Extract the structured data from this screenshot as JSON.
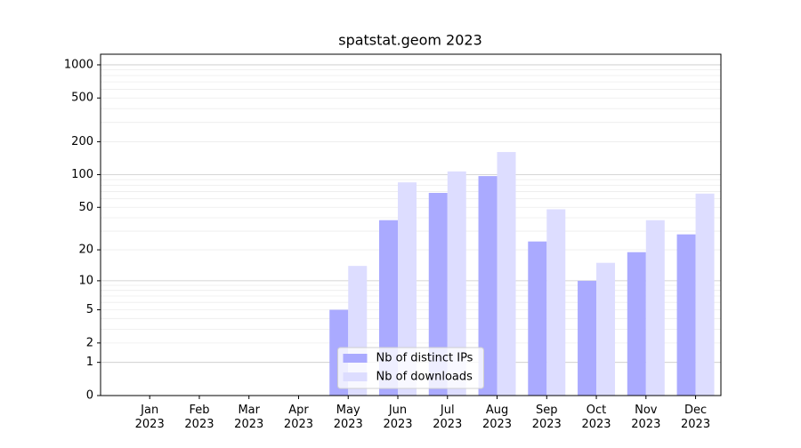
{
  "chart_data": {
    "type": "bar",
    "title": "spatstat.geom 2023",
    "categories": [
      [
        "Jan",
        "2023"
      ],
      [
        "Feb",
        "2023"
      ],
      [
        "Mar",
        "2023"
      ],
      [
        "Apr",
        "2023"
      ],
      [
        "May",
        "2023"
      ],
      [
        "Jun",
        "2023"
      ],
      [
        "Jul",
        "2023"
      ],
      [
        "Aug",
        "2023"
      ],
      [
        "Sep",
        "2023"
      ],
      [
        "Oct",
        "2023"
      ],
      [
        "Nov",
        "2023"
      ],
      [
        "Dec",
        "2023"
      ]
    ],
    "series": [
      {
        "name": "Nb of distinct IPs",
        "color": "#aaaaff",
        "values": [
          0,
          0,
          0,
          0,
          5,
          38,
          68,
          97,
          24,
          10,
          19,
          28
        ]
      },
      {
        "name": "Nb of downloads",
        "color": "#ddddff",
        "values": [
          0,
          0,
          0,
          0,
          14,
          85,
          107,
          161,
          48,
          15,
          38,
          67
        ]
      }
    ],
    "y_scale": "log1p",
    "ylim": [
      0,
      1249
    ],
    "yticks": [
      0,
      1,
      2,
      5,
      10,
      20,
      50,
      100,
      200,
      500,
      1000
    ],
    "grid_major": [
      1,
      10,
      100,
      1000
    ],
    "grid_minor": [
      2,
      3,
      4,
      5,
      6,
      7,
      8,
      9,
      20,
      30,
      40,
      50,
      60,
      70,
      80,
      90,
      200,
      300,
      400,
      500,
      600,
      700,
      800,
      900
    ],
    "legend": "lower center"
  }
}
